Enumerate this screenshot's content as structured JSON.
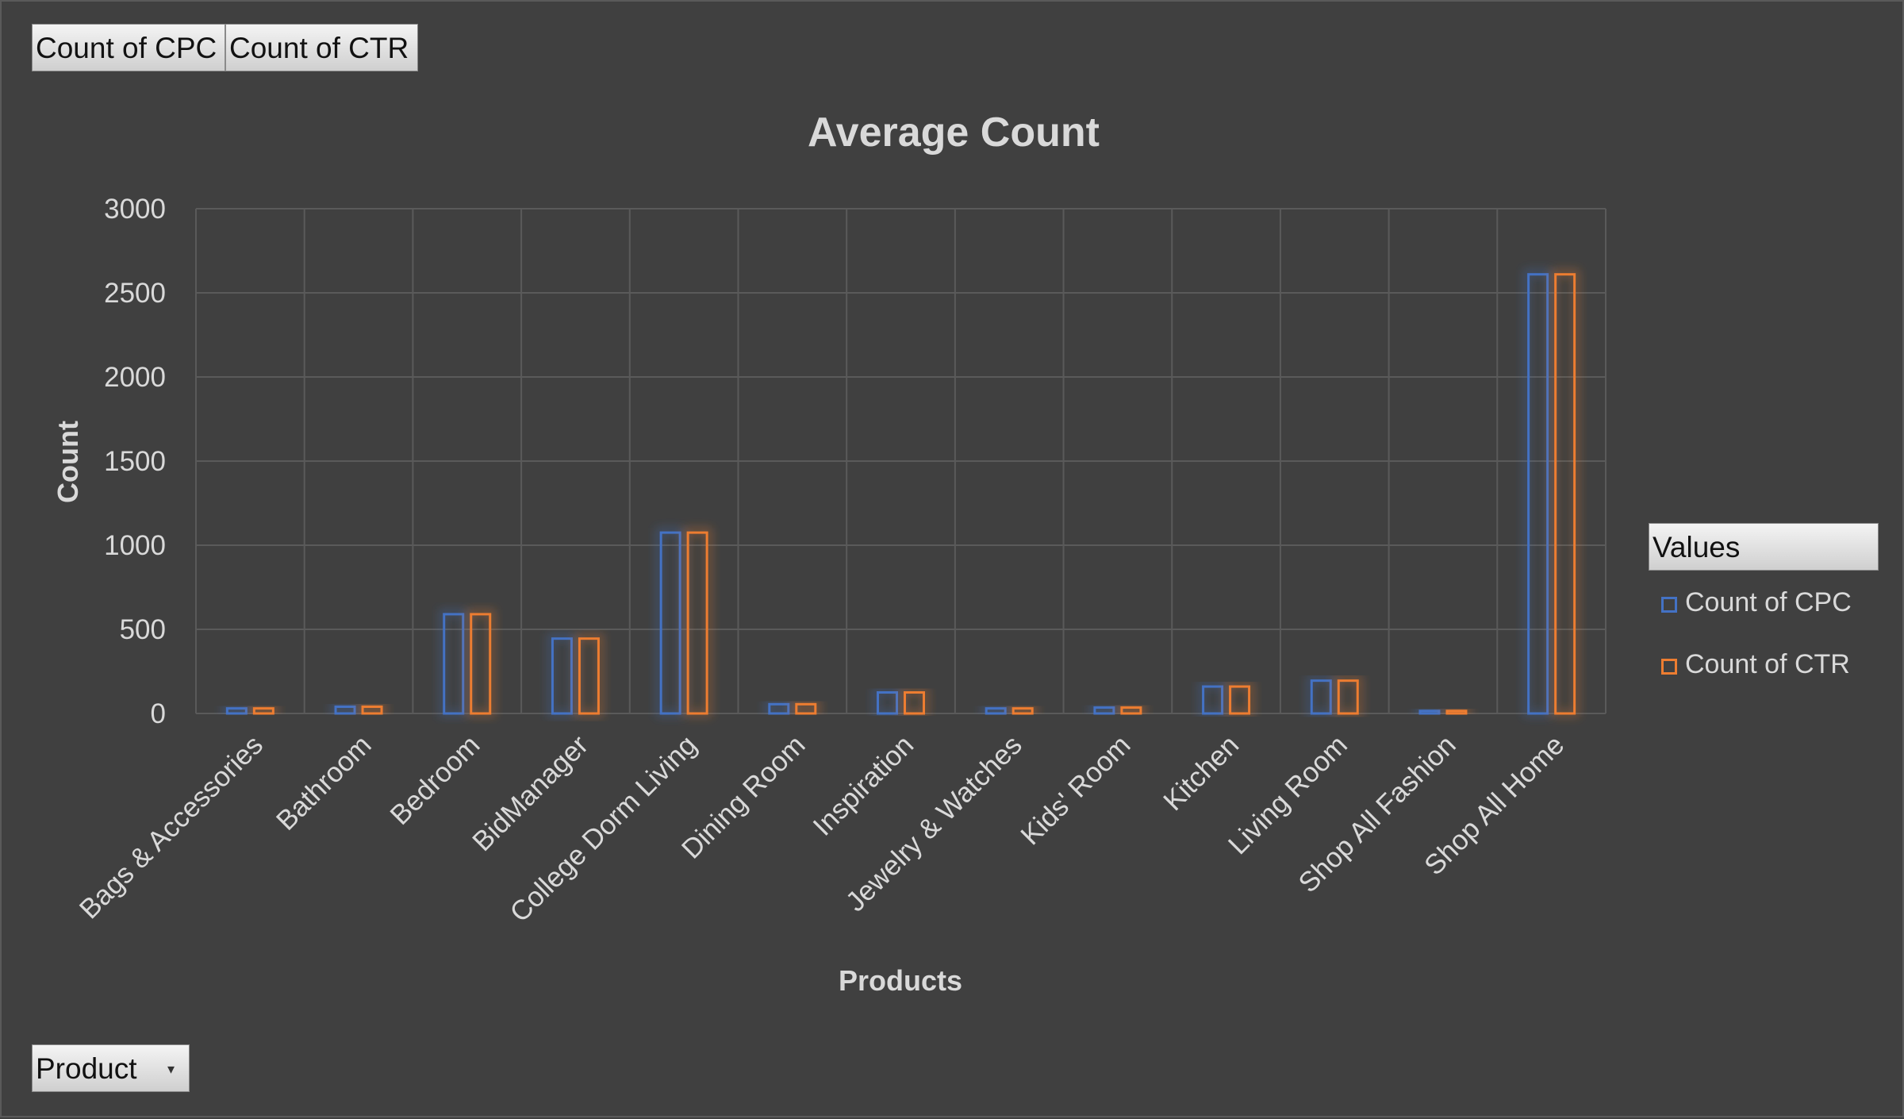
{
  "field_buttons": {
    "cpc": "Count of CPC",
    "ctr": "Count of CTR"
  },
  "filter": {
    "label": "Product",
    "icon": "dropdown-arrow-icon"
  },
  "legend": {
    "title": "Values",
    "placement": "right"
  },
  "colors": {
    "background": "#404040",
    "cpc": "#4472C4",
    "ctr": "#ED7D31",
    "grid": "#5a5a5a",
    "text": "#d9d9d9"
  },
  "chart_data": {
    "type": "bar",
    "title": "Average Count",
    "xlabel": "Products",
    "ylabel": "Count",
    "ylim": [
      0,
      3000
    ],
    "yticks": [
      0,
      500,
      1000,
      1500,
      2000,
      2500,
      3000
    ],
    "grid": true,
    "categories": [
      "Bags & Accessories",
      "Bathroom",
      "Bedroom",
      "BidManager",
      "College Dorm Living",
      "Dining Room",
      "Inspiration",
      "Jewelry & Watches",
      "Kids' Room",
      "Kitchen",
      "Living Room",
      "Shop All Fashion",
      "Shop All Home"
    ],
    "series": [
      {
        "name": "Count of CPC",
        "values": [
          30,
          40,
          590,
          445,
          1075,
          55,
          125,
          30,
          35,
          160,
          195,
          15,
          2610
        ]
      },
      {
        "name": "Count of CTR",
        "values": [
          30,
          40,
          590,
          445,
          1075,
          55,
          125,
          30,
          35,
          160,
          195,
          15,
          2610
        ]
      }
    ]
  }
}
